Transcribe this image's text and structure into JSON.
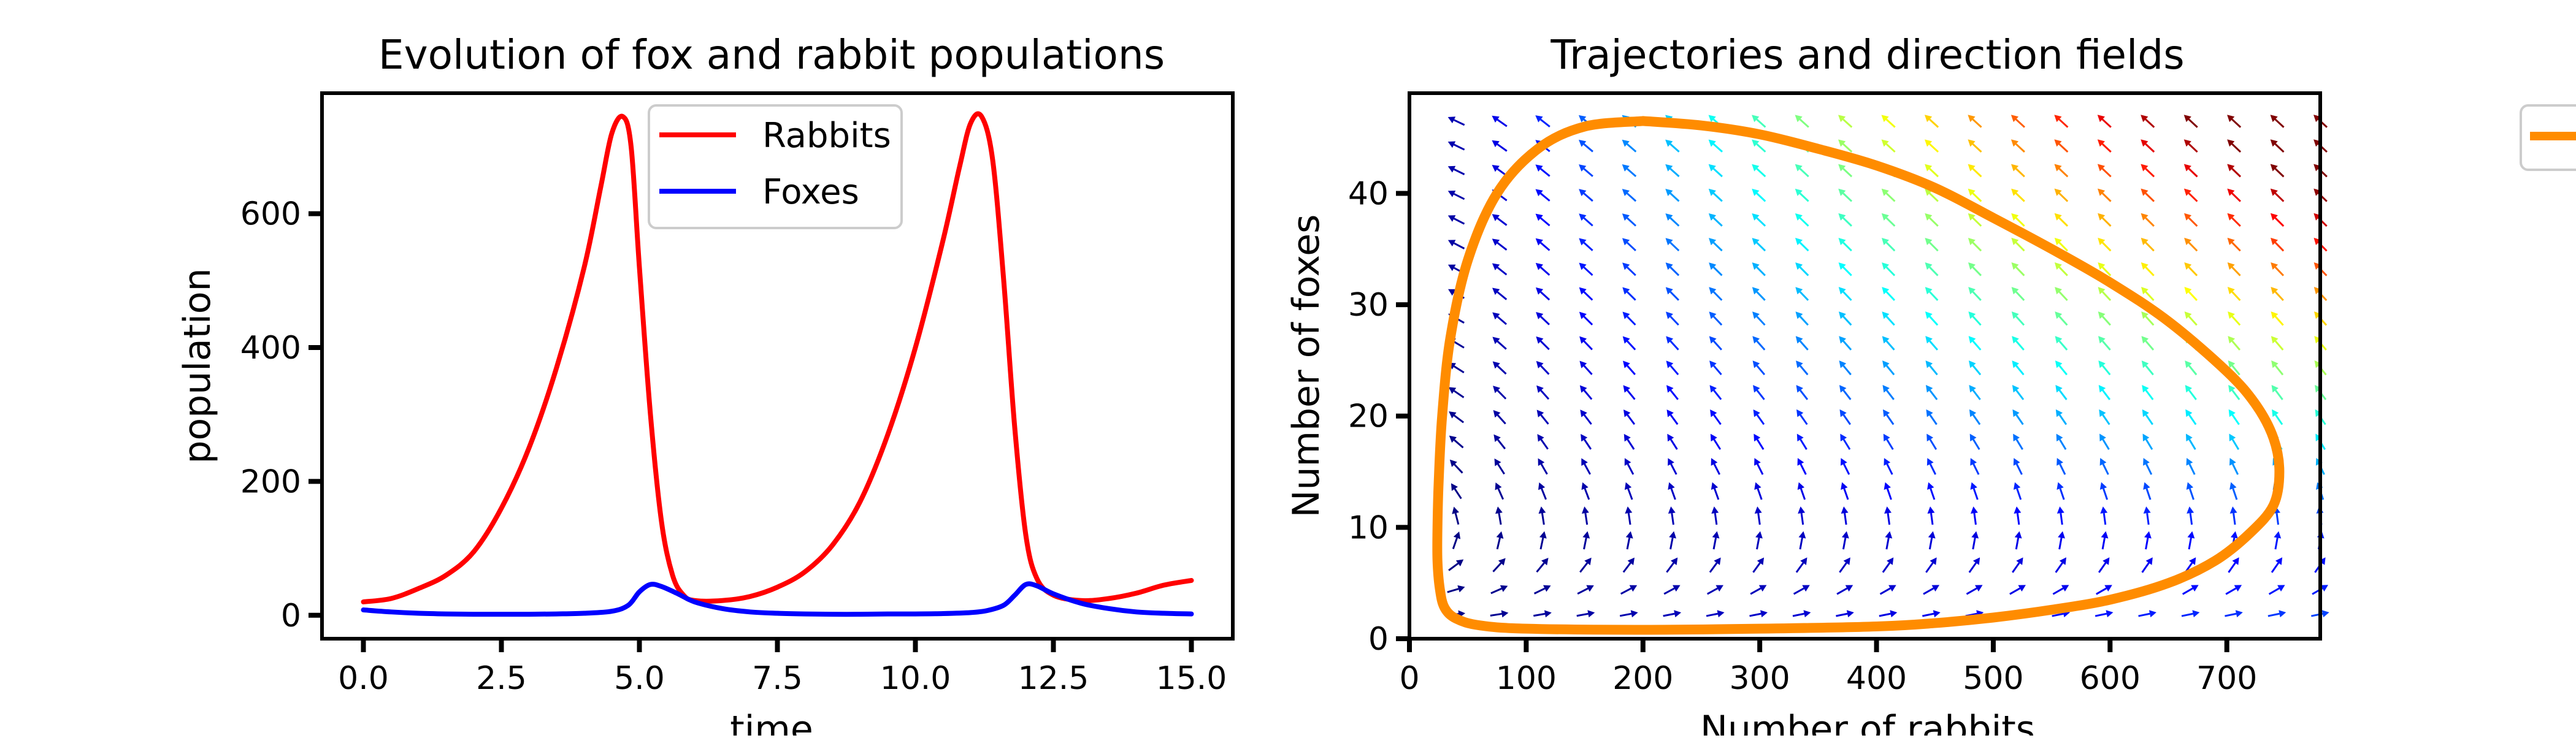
{
  "chart_data": [
    {
      "type": "line",
      "title": "Evolution of fox and rabbit populations",
      "xlabel": "time",
      "ylabel": "population",
      "xlim": [
        -0.75,
        15.75
      ],
      "ylim": [
        -35,
        780
      ],
      "xticks": [
        "0.0",
        "2.5",
        "5.0",
        "7.5",
        "10.0",
        "12.5",
        "15.0"
      ],
      "yticks": [
        "0",
        "200",
        "400",
        "600"
      ],
      "legend": "top-center",
      "series": [
        {
          "name": "Rabbits",
          "color": "#ff0000",
          "x": [
            0,
            0.5,
            1,
            1.5,
            2,
            2.5,
            3,
            3.5,
            4,
            4.3,
            4.5,
            4.7,
            4.85,
            5.0,
            5.2,
            5.4,
            5.6,
            5.8,
            6,
            6.5,
            7,
            7.5,
            8,
            8.5,
            9,
            9.5,
            10,
            10.5,
            10.8,
            11.0,
            11.2,
            11.4,
            11.6,
            11.8,
            12,
            12.2,
            12.5,
            13,
            13.5,
            14,
            14.5,
            15
          ],
          "y": [
            20,
            25,
            40,
            60,
            95,
            160,
            250,
            370,
            520,
            640,
            720,
            745,
            700,
            520,
            300,
            140,
            60,
            30,
            22,
            22,
            28,
            42,
            65,
            105,
            170,
            270,
            400,
            560,
            670,
            735,
            745,
            680,
            500,
            280,
            120,
            55,
            30,
            22,
            25,
            33,
            45,
            52
          ]
        },
        {
          "name": "Foxes",
          "color": "#0000ff",
          "x": [
            0,
            0.5,
            1,
            1.5,
            2,
            2.5,
            3,
            3.5,
            4,
            4.5,
            4.8,
            5.0,
            5.2,
            5.4,
            5.7,
            6,
            6.5,
            7,
            7.5,
            8,
            8.5,
            9,
            9.5,
            10,
            10.5,
            11,
            11.3,
            11.6,
            11.8,
            12.0,
            12.2,
            12.5,
            13,
            13.5,
            14,
            14.5,
            15
          ],
          "y": [
            8,
            5,
            3,
            2,
            1.5,
            1.5,
            1.5,
            2,
            3,
            6,
            15,
            35,
            46,
            43,
            32,
            20,
            10,
            5,
            3,
            2,
            1.5,
            1.5,
            2,
            2,
            2.5,
            4,
            7,
            15,
            30,
            46,
            44,
            32,
            18,
            10,
            5,
            3,
            2
          ]
        }
      ]
    },
    {
      "type": "line",
      "title": "Trajectories and direction fields",
      "xlabel": "Number of rabbits",
      "ylabel": "Number of foxes",
      "xlim": [
        0,
        780
      ],
      "ylim": [
        0,
        49
      ],
      "xticks": [
        "0",
        "100",
        "200",
        "300",
        "400",
        "500",
        "600",
        "700"
      ],
      "yticks": [
        "0",
        "10",
        "20",
        "30",
        "40"
      ],
      "legend": "outside right (clipped)",
      "quiver": {
        "x_start": 40,
        "x_end": 780,
        "nx": 21,
        "y_start": 2.2,
        "y_end": 46.5,
        "ny": 21,
        "colormap": "jet"
      },
      "series": [
        {
          "name": "",
          "color": "#ff8c00",
          "x": [
            200,
            150,
            110,
            75,
            50,
            35,
            28,
            25,
            24,
            24,
            26,
            30,
            40,
            60,
            100,
            200,
            300,
            400,
            450,
            500,
            550,
            600,
            650,
            690,
            720,
            740,
            745,
            740,
            725,
            700,
            650,
            600,
            550,
            500,
            450,
            400,
            350,
            300,
            250,
            200
          ],
          "y": [
            46.5,
            46,
            44,
            40,
            34,
            27,
            20,
            14,
            10,
            7,
            4.5,
            2.8,
            1.8,
            1.2,
            0.9,
            0.8,
            0.9,
            1.1,
            1.4,
            1.9,
            2.6,
            3.5,
            5,
            7,
            9.5,
            12,
            15,
            18,
            21,
            24,
            28.5,
            32,
            35,
            37.8,
            40.5,
            42.5,
            44,
            45.3,
            46.1,
            46.5
          ]
        }
      ]
    }
  ]
}
